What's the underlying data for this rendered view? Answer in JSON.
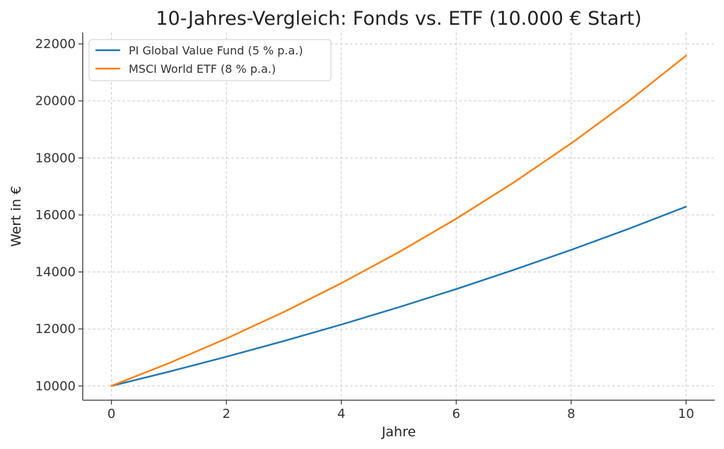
{
  "chart_data": {
    "type": "line",
    "title": "10-Jahres-Vergleich: Fonds vs. ETF (10.000 € Start)",
    "xlabel": "Jahre",
    "ylabel": "Wert in €",
    "x": [
      0,
      1,
      2,
      3,
      4,
      5,
      6,
      7,
      8,
      9,
      10
    ],
    "xlim": [
      -0.5,
      10.5
    ],
    "ylim": [
      9500,
      22400
    ],
    "xticks": [
      0,
      2,
      4,
      6,
      8,
      10
    ],
    "yticks": [
      10000,
      12000,
      14000,
      16000,
      18000,
      20000,
      22000
    ],
    "grid": true,
    "legend_position": "top-left",
    "series": [
      {
        "name": "PI Global Value Fund (5 % p.a.)",
        "color": "#1f77b4",
        "values": [
          10000,
          10500,
          11025,
          11576,
          12155,
          12763,
          13401,
          14071,
          14775,
          15513,
          16289
        ]
      },
      {
        "name": "MSCI World ETF (8 % p.a.)",
        "color": "#ff7f0e",
        "values": [
          10000,
          10800,
          11664,
          12597,
          13605,
          14693,
          15869,
          17138,
          18509,
          19990,
          21589
        ]
      }
    ]
  }
}
